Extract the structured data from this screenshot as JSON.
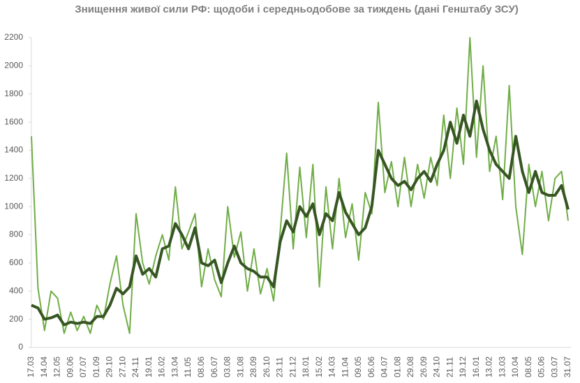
{
  "chart_data": {
    "type": "line",
    "title": "Знищення живої сили РФ: щодоби і середньодобове за тиждень (дані Генштабу ЗСУ)",
    "categories": [
      "17.03",
      null,
      "14.04",
      null,
      "12.05",
      null,
      "09.06",
      null,
      "07.07",
      null,
      "01.09",
      null,
      "29.10",
      null,
      "27.10",
      null,
      "24.11",
      null,
      "19.01",
      null,
      "16.02",
      null,
      "13.04",
      null,
      "11.05",
      null,
      "08.06",
      null,
      "06.07",
      null,
      "03.08",
      null,
      "31.08",
      null,
      "28.09",
      null,
      "26.10",
      null,
      "23.11",
      null,
      "21.12",
      null,
      "18.01",
      null,
      "15.02",
      null,
      "14.03",
      null,
      "11.04",
      null,
      "09.05",
      null,
      "06.06",
      null,
      "04.07",
      null,
      "01.08",
      null,
      "29.08",
      null,
      "26.09",
      null,
      "24.10",
      null,
      "21.11",
      null,
      "19.12",
      null,
      "16.01",
      null,
      "13.02",
      null,
      "13.03",
      null,
      "10.04",
      null,
      "08.05",
      null,
      "05.06",
      null,
      "03.07",
      null,
      "31.07"
    ],
    "series": [
      {
        "color": "#70ad47",
        "width": 2,
        "values": [
          1500,
          420,
          120,
          400,
          350,
          100,
          250,
          120,
          220,
          100,
          300,
          200,
          450,
          650,
          300,
          100,
          950,
          600,
          450,
          650,
          800,
          620,
          1140,
          700,
          820,
          950,
          430,
          700,
          480,
          360,
          1000,
          640,
          820,
          400,
          700,
          380,
          560,
          330,
          820,
          1380,
          700,
          1280,
          780,
          1300,
          430,
          1140,
          700,
          1200,
          780,
          1020,
          620,
          1100,
          950,
          1740,
          1100,
          1320,
          1000,
          1350,
          1000,
          1300,
          1060,
          1350,
          1150,
          1650,
          1200,
          1700,
          1300,
          2200,
          1350,
          2000,
          1250,
          1500,
          1050,
          1860,
          1000,
          660,
          1300,
          1000,
          1250,
          900,
          1200,
          1250,
          900
        ]
      },
      {
        "color": "#375623",
        "width": 4,
        "values": [
          300,
          280,
          200,
          210,
          230,
          160,
          180,
          170,
          180,
          170,
          220,
          220,
          300,
          420,
          380,
          430,
          650,
          520,
          560,
          500,
          700,
          720,
          880,
          800,
          700,
          850,
          600,
          580,
          620,
          460,
          600,
          720,
          600,
          560,
          540,
          500,
          500,
          430,
          750,
          900,
          820,
          1000,
          930,
          1020,
          800,
          950,
          900,
          1100,
          960,
          880,
          800,
          850,
          1000,
          1400,
          1300,
          1200,
          1150,
          1180,
          1120,
          1200,
          1250,
          1180,
          1300,
          1400,
          1600,
          1450,
          1650,
          1500,
          1750,
          1550,
          1400,
          1300,
          1250,
          1200,
          1500,
          1250,
          1100,
          1250,
          1100,
          1080,
          1080,
          1150,
          980
        ]
      }
    ],
    "ylim": [
      0,
      2200
    ],
    "yticks": [
      0,
      200,
      400,
      600,
      800,
      1000,
      1200,
      1400,
      1600,
      1800,
      2000,
      2200
    ],
    "grid": false
  }
}
